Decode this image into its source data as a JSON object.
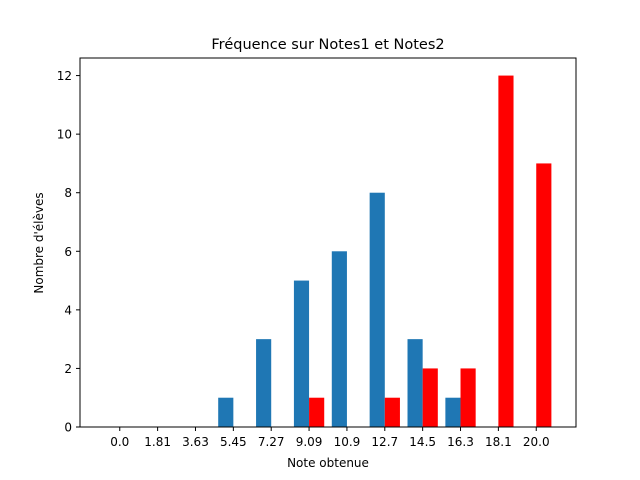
{
  "chart_data": {
    "type": "bar",
    "title": "Fréquence sur Notes1 et Notes2",
    "xlabel": "Note obtenue",
    "ylabel": "Nombre d'élèves",
    "categories": [
      "0.0",
      "1.81",
      "3.63",
      "5.45",
      "7.27",
      "9.09",
      "10.9",
      "12.7",
      "14.5",
      "16.3",
      "18.1",
      "20.0"
    ],
    "series": [
      {
        "values": [
          0,
          0,
          0,
          1,
          3,
          5,
          6,
          8,
          3,
          1,
          0,
          0
        ],
        "color": "#1f77b4"
      },
      {
        "values": [
          0,
          0,
          0,
          0,
          0,
          1,
          0,
          1,
          2,
          2,
          12,
          9
        ],
        "color": "#ff0000"
      }
    ],
    "ylim": [
      0,
      12.6
    ],
    "yticks": [
      0,
      2,
      4,
      6,
      8,
      10,
      12
    ],
    "grid": false,
    "legend": "none"
  }
}
